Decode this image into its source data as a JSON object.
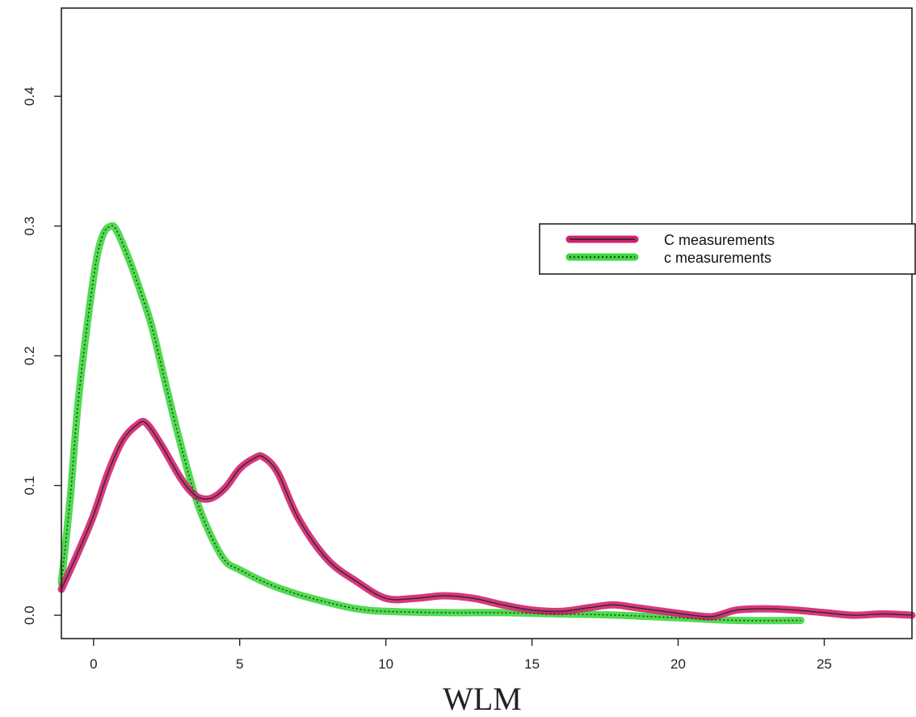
{
  "chart_data": {
    "type": "line",
    "xlabel": "WLM",
    "ylabel": "",
    "title": "",
    "xlim": [
      -1.1,
      28
    ],
    "ylim": [
      -0.018,
      0.468
    ],
    "x_ticks": [
      0,
      5,
      10,
      15,
      20,
      25
    ],
    "y_ticks": [
      0.0,
      0.1,
      0.2,
      0.3,
      0.4
    ],
    "y_tick_labels": [
      "0.0",
      "0.1",
      "0.2",
      "0.3",
      "0.4"
    ],
    "legend_position": "right",
    "grid": false,
    "series": [
      {
        "name": "C measurements",
        "color": "#d4216f",
        "fit_color": "#3a2a30",
        "fit_style": "solid",
        "x": [
          -1.1,
          -0.5,
          0,
          0.5,
          1.0,
          1.5,
          1.8,
          2.3,
          3.0,
          3.5,
          4.0,
          4.5,
          5.0,
          5.5,
          5.8,
          6.3,
          7.0,
          8.0,
          9.0,
          10.0,
          11.0,
          12.0,
          13.0,
          14.0,
          15.0,
          16.0,
          17.0,
          17.8,
          18.5,
          19.5,
          20.5,
          21.2,
          22.0,
          23.0,
          24.0,
          25.0,
          26.0,
          27.0,
          28.0
        ],
        "y": [
          0.02,
          0.05,
          0.077,
          0.11,
          0.135,
          0.147,
          0.148,
          0.132,
          0.105,
          0.092,
          0.09,
          0.098,
          0.113,
          0.121,
          0.122,
          0.11,
          0.075,
          0.043,
          0.026,
          0.013,
          0.013,
          0.015,
          0.013,
          0.008,
          0.004,
          0.003,
          0.006,
          0.008,
          0.006,
          0.003,
          0.0,
          -0.001,
          0.004,
          0.005,
          0.004,
          0.002,
          0.0,
          0.001,
          0.0
        ]
      },
      {
        "name": "c measurements",
        "color": "#3fd63f",
        "fit_color": "#1e3a1e",
        "fit_style": "dotted",
        "x": [
          -1.1,
          -0.8,
          -0.5,
          0,
          0.3,
          0.6,
          0.8,
          1.2,
          1.6,
          2.0,
          2.5,
          3.0,
          3.5,
          4.0,
          4.5,
          5.0,
          6.0,
          7.0,
          8.0,
          9.0,
          10.0,
          12.0,
          14.0,
          16.0,
          18.0,
          20.0,
          22.0,
          24.2
        ],
        "y": [
          0.025,
          0.09,
          0.17,
          0.26,
          0.292,
          0.3,
          0.296,
          0.275,
          0.25,
          0.222,
          0.175,
          0.13,
          0.09,
          0.062,
          0.042,
          0.035,
          0.024,
          0.016,
          0.01,
          0.005,
          0.003,
          0.002,
          0.002,
          0.001,
          0.0,
          -0.002,
          -0.004,
          -0.004
        ]
      }
    ]
  }
}
